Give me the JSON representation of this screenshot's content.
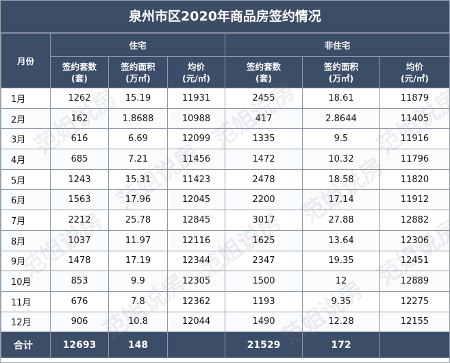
{
  "title": "泉州市区2020年商品房签约情况",
  "headers": {
    "month": "月份",
    "residential": "住宅",
    "non_residential": "非住宅",
    "units_label": "签约套数",
    "units_unit": "(套)",
    "area_label": "签约面积",
    "area_unit": "(万㎡)",
    "price_label": "均价",
    "price_unit": "(元/㎡)"
  },
  "rows": [
    {
      "month": "1月",
      "res_units": "1262",
      "res_area": "15.19",
      "res_price": "11931",
      "non_units": "2455",
      "non_area": "18.61",
      "non_price": "11879"
    },
    {
      "month": "2月",
      "res_units": "162",
      "res_area": "1.8688",
      "res_price": "10988",
      "non_units": "417",
      "non_area": "2.8644",
      "non_price": "11405"
    },
    {
      "month": "3月",
      "res_units": "616",
      "res_area": "6.69",
      "res_price": "12099",
      "non_units": "1335",
      "non_area": "9.5",
      "non_price": "11916"
    },
    {
      "month": "4月",
      "res_units": "685",
      "res_area": "7.21",
      "res_price": "11456",
      "non_units": "1472",
      "non_area": "10.32",
      "non_price": "11796"
    },
    {
      "month": "5月",
      "res_units": "1243",
      "res_area": "15.31",
      "res_price": "11423",
      "non_units": "2478",
      "non_area": "18.58",
      "non_price": "11820"
    },
    {
      "month": "6月",
      "res_units": "1563",
      "res_area": "17.96",
      "res_price": "12045",
      "non_units": "2200",
      "non_area": "17.14",
      "non_price": "11912"
    },
    {
      "month": "7月",
      "res_units": "2212",
      "res_area": "25.78",
      "res_price": "12845",
      "non_units": "3017",
      "non_area": "27.88",
      "non_price": "12882"
    },
    {
      "month": "8月",
      "res_units": "1037",
      "res_area": "11.97",
      "res_price": "12116",
      "non_units": "1625",
      "non_area": "13.64",
      "non_price": "12306"
    },
    {
      "month": "9月",
      "res_units": "1478",
      "res_area": "17.19",
      "res_price": "12344",
      "non_units": "2347",
      "non_area": "19.35",
      "non_price": "12451"
    },
    {
      "month": "10月",
      "res_units": "853",
      "res_area": "9.9",
      "res_price": "12305",
      "non_units": "1500",
      "non_area": "12",
      "non_price": "12889"
    },
    {
      "month": "11月",
      "res_units": "676",
      "res_area": "7.8",
      "res_price": "12362",
      "non_units": "1193",
      "non_area": "9.35",
      "non_price": "12275"
    },
    {
      "month": "12月",
      "res_units": "906",
      "res_area": "10.8",
      "res_price": "12044",
      "non_units": "1490",
      "non_area": "12.28",
      "non_price": "12155"
    }
  ],
  "total": {
    "label": "合计",
    "res_units": "12693",
    "res_area": "148",
    "res_price": "",
    "non_units": "21529",
    "non_area": "172",
    "non_price": ""
  },
  "watermark_text": "范姐说房",
  "colors": {
    "header_bg": "#3c4d68",
    "header_text": "#ffffff",
    "grid": "#8e97a6"
  }
}
